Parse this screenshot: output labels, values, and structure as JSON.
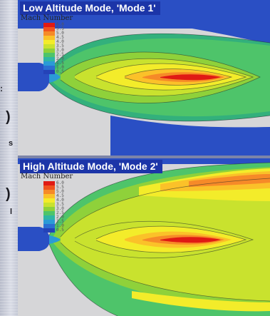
{
  "panels": [
    {
      "title": "Low Altitude Mode, 'Mode 1'",
      "legend_label": "Mach Number",
      "legend_ticks": [
        "6.0",
        "5.5",
        "5.0",
        "4.5",
        "4.0",
        "3.5",
        "3.0",
        "2.5",
        "2.0",
        "1.5",
        "1.0",
        "0.5"
      ]
    },
    {
      "title": "High Altitude Mode, 'Mode 2'",
      "legend_label": "Mach Number",
      "legend_ticks": [
        "6.0",
        "5.5",
        "5.0",
        "4.5",
        "4.0",
        "3.5",
        "3.0",
        "2.5",
        "2.0",
        "1.5",
        "1.0",
        "0.5"
      ]
    }
  ],
  "legend_colors": [
    "#e01a14",
    "#f0531e",
    "#f68a28",
    "#fbc129",
    "#f3ec2a",
    "#c9e22e",
    "#8fd13a",
    "#4ec46a",
    "#2fb6a4",
    "#2b9bd6",
    "#2b6fd2",
    "#2443b8"
  ],
  "colors": {
    "title_background": "#1c35a8",
    "ambient_fill": "#d6d6d8",
    "nozzle_blue": "#2a4fc4"
  }
}
